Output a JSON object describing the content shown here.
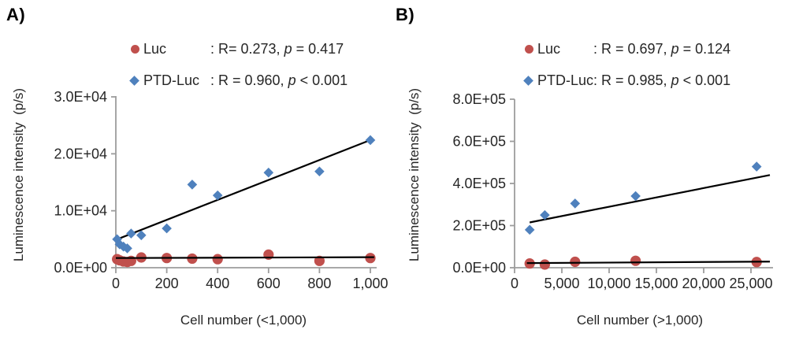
{
  "figure": {
    "axis_color": "#9C9C9C",
    "trendline_color": "#000000",
    "text_color": "#262626",
    "luc_color": "#C0504D",
    "ptd_luc_color": "#4F81BD"
  },
  "chart_data": [
    {
      "panel_label": "A)",
      "type": "scatter",
      "title": "",
      "xlabel": "Cell number (<1,000)",
      "ylabel": "Luminescence intensity  (p/s)",
      "xlim": [
        0,
        1025
      ],
      "ylim": [
        0,
        30000
      ],
      "grid": false,
      "legend_position": "top",
      "x_ticks": [
        {
          "value": 0,
          "label": "0"
        },
        {
          "value": 200,
          "label": "200"
        },
        {
          "value": 400,
          "label": "400"
        },
        {
          "value": 600,
          "label": "600"
        },
        {
          "value": 800,
          "label": "800"
        },
        {
          "value": 1000,
          "label": "1,000"
        }
      ],
      "y_ticks": [
        {
          "value": 0,
          "label": "0.0E+00"
        },
        {
          "value": 10000,
          "label": "1.0E+04"
        },
        {
          "value": 20000,
          "label": "2.0E+04"
        },
        {
          "value": 30000,
          "label": "3.0E+04"
        }
      ],
      "series": [
        {
          "name": "Luc",
          "marker": "circle",
          "color": "#C0504D",
          "stats_prefix": ": R= 0.273, ",
          "stats_p": "p",
          "stats_suffix": " = 0.417",
          "points": [
            [
              5,
              1500
            ],
            [
              15,
              1300
            ],
            [
              30,
              1100
            ],
            [
              45,
              1000
            ],
            [
              60,
              1200
            ],
            [
              100,
              1800
            ],
            [
              200,
              1700
            ],
            [
              300,
              1600
            ],
            [
              400,
              1500
            ],
            [
              600,
              2300
            ],
            [
              800,
              1200
            ],
            [
              1000,
              1700
            ]
          ],
          "trend": [
            [
              0,
              1700
            ],
            [
              1015,
              1850
            ]
          ]
        },
        {
          "name": "PTD-Luc",
          "marker": "diamond",
          "color": "#4F81BD",
          "stats_prefix": ": R = 0.960, ",
          "stats_p": "p",
          "stats_suffix": " < 0.001",
          "points": [
            [
              5,
              5000
            ],
            [
              15,
              4100
            ],
            [
              30,
              3700
            ],
            [
              45,
              3400
            ],
            [
              60,
              6000
            ],
            [
              100,
              5700
            ],
            [
              200,
              6900
            ],
            [
              300,
              14600
            ],
            [
              400,
              12700
            ],
            [
              600,
              16700
            ],
            [
              800,
              16900
            ],
            [
              1000,
              22400
            ]
          ],
          "trend": [
            [
              0,
              4900
            ],
            [
              1005,
              22500
            ]
          ]
        }
      ]
    },
    {
      "panel_label": "B)",
      "type": "scatter",
      "title": "",
      "xlabel": "Cell number (>1,000)",
      "ylabel": "Luminescence intensity  (p/s)",
      "xlim": [
        0,
        27333
      ],
      "ylim": [
        0,
        800000
      ],
      "grid": false,
      "legend_position": "top",
      "x_ticks": [
        {
          "value": 0,
          "label": "0"
        },
        {
          "value": 5000,
          "label": "5,000"
        },
        {
          "value": 10000,
          "label": "10,000"
        },
        {
          "value": 15000,
          "label": "15,000"
        },
        {
          "value": 20000,
          "label": "20,000"
        },
        {
          "value": 25000,
          "label": "25,000"
        }
      ],
      "y_ticks": [
        {
          "value": 0,
          "label": "0.0E+00"
        },
        {
          "value": 200000,
          "label": "2.0E+05"
        },
        {
          "value": 400000,
          "label": "4.0E+05"
        },
        {
          "value": 600000,
          "label": "6.0E+05"
        },
        {
          "value": 800000,
          "label": "8.0E+05"
        }
      ],
      "series": [
        {
          "name": "Luc",
          "marker": "circle",
          "color": "#C0504D",
          "stats_prefix": ": R = 0.697, ",
          "stats_p": "p",
          "stats_suffix": " = 0.124",
          "points": [
            [
              1600,
              20000
            ],
            [
              3200,
              15000
            ],
            [
              6400,
              28000
            ],
            [
              12800,
              33000
            ],
            [
              25600,
              27000
            ]
          ],
          "trend": [
            [
              1300,
              22000
            ],
            [
              27000,
              29000
            ]
          ]
        },
        {
          "name": "PTD-Luc",
          "marker": "diamond",
          "color": "#4F81BD",
          "stats_prefix": ": R = 0.985, ",
          "stats_p": "p",
          "stats_suffix": " < 0.001",
          "points": [
            [
              1600,
              180000
            ],
            [
              3200,
              250000
            ],
            [
              6400,
              305000
            ],
            [
              12800,
              340000
            ],
            [
              25600,
              480000
            ]
          ],
          "trend": [
            [
              1600,
              215000
            ],
            [
              27000,
              440000
            ]
          ]
        }
      ]
    }
  ]
}
